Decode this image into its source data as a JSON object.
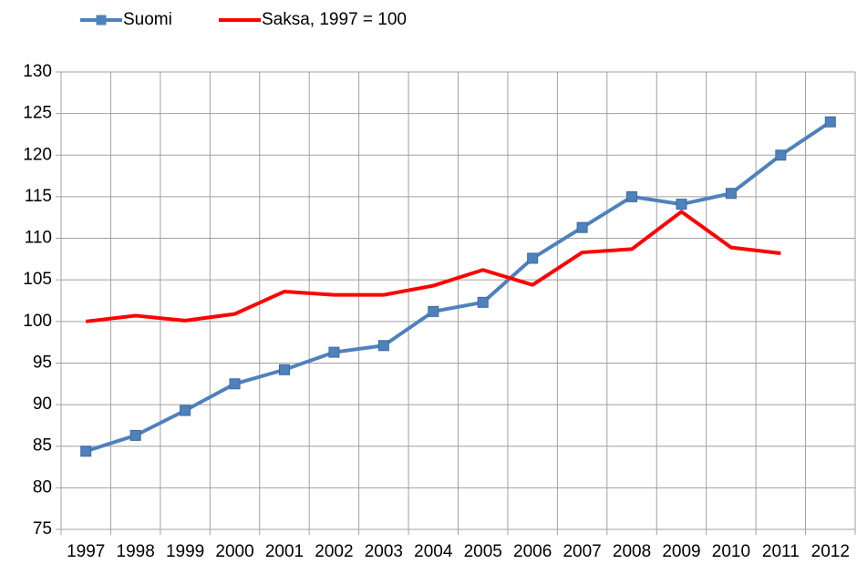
{
  "chart_data": {
    "type": "line",
    "categories": [
      "1997",
      "1998",
      "1999",
      "2000",
      "2001",
      "2002",
      "2003",
      "2004",
      "2005",
      "2006",
      "2007",
      "2008",
      "2009",
      "2010",
      "2011",
      "2012"
    ],
    "series": [
      {
        "name": "Suomi",
        "color": "#4f81bd",
        "marker": "square",
        "values": [
          84.4,
          86.3,
          89.3,
          92.5,
          94.2,
          96.3,
          97.1,
          101.2,
          102.3,
          107.6,
          111.3,
          115.0,
          114.1,
          115.4,
          120.0,
          124.0
        ]
      },
      {
        "name": "Saksa, 1997 = 100",
        "color": "#ff0000",
        "values": [
          100,
          100.7,
          100.1,
          100.9,
          103.6,
          103.2,
          103.2,
          104.3,
          106.2,
          104.4,
          108.3,
          108.7,
          113.2,
          108.9,
          108.2,
          null
        ]
      }
    ],
    "ylim": [
      75,
      130
    ],
    "yticks": [
      75,
      80,
      85,
      90,
      95,
      100,
      105,
      110,
      115,
      120,
      125,
      130
    ],
    "grid": true,
    "legend": "top"
  }
}
